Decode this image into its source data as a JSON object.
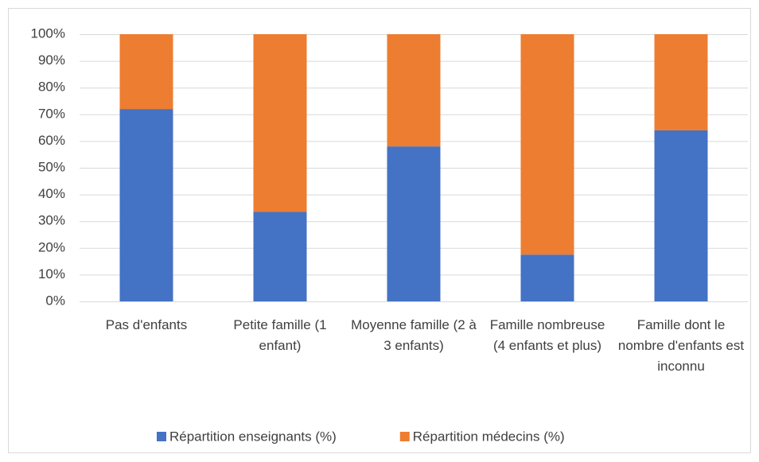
{
  "chart_data": {
    "type": "stacked_bar",
    "categories": [
      "Pas d'enfants",
      "Petite famille (1 enfant)",
      "Moyenne famille (2 à 3 enfants)",
      "Famille nombreuse (4 enfants et plus)",
      "Famille dont le nombre d'enfants est inconnu"
    ],
    "series": [
      {
        "name": "Répartition enseignants (%)",
        "color": "#4472c4",
        "values": [
          72,
          33.5,
          58,
          17.5,
          64
        ]
      },
      {
        "name": "Répartition médecins (%)",
        "color": "#ed7d31",
        "values": [
          28,
          66.5,
          42,
          82.5,
          36
        ]
      }
    ],
    "ylim": [
      0,
      100
    ],
    "yticks": [
      {
        "value": 0,
        "label": "0%"
      },
      {
        "value": 10,
        "label": "10%"
      },
      {
        "value": 20,
        "label": "20%"
      },
      {
        "value": 30,
        "label": "30%"
      },
      {
        "value": 40,
        "label": "40%"
      },
      {
        "value": 50,
        "label": "50%"
      },
      {
        "value": 60,
        "label": "60%"
      },
      {
        "value": 70,
        "label": "70%"
      },
      {
        "value": 80,
        "label": "80%"
      },
      {
        "value": 90,
        "label": "90%"
      },
      {
        "value": 100,
        "label": "100%"
      }
    ],
    "grid": true,
    "legend": "bottom"
  }
}
